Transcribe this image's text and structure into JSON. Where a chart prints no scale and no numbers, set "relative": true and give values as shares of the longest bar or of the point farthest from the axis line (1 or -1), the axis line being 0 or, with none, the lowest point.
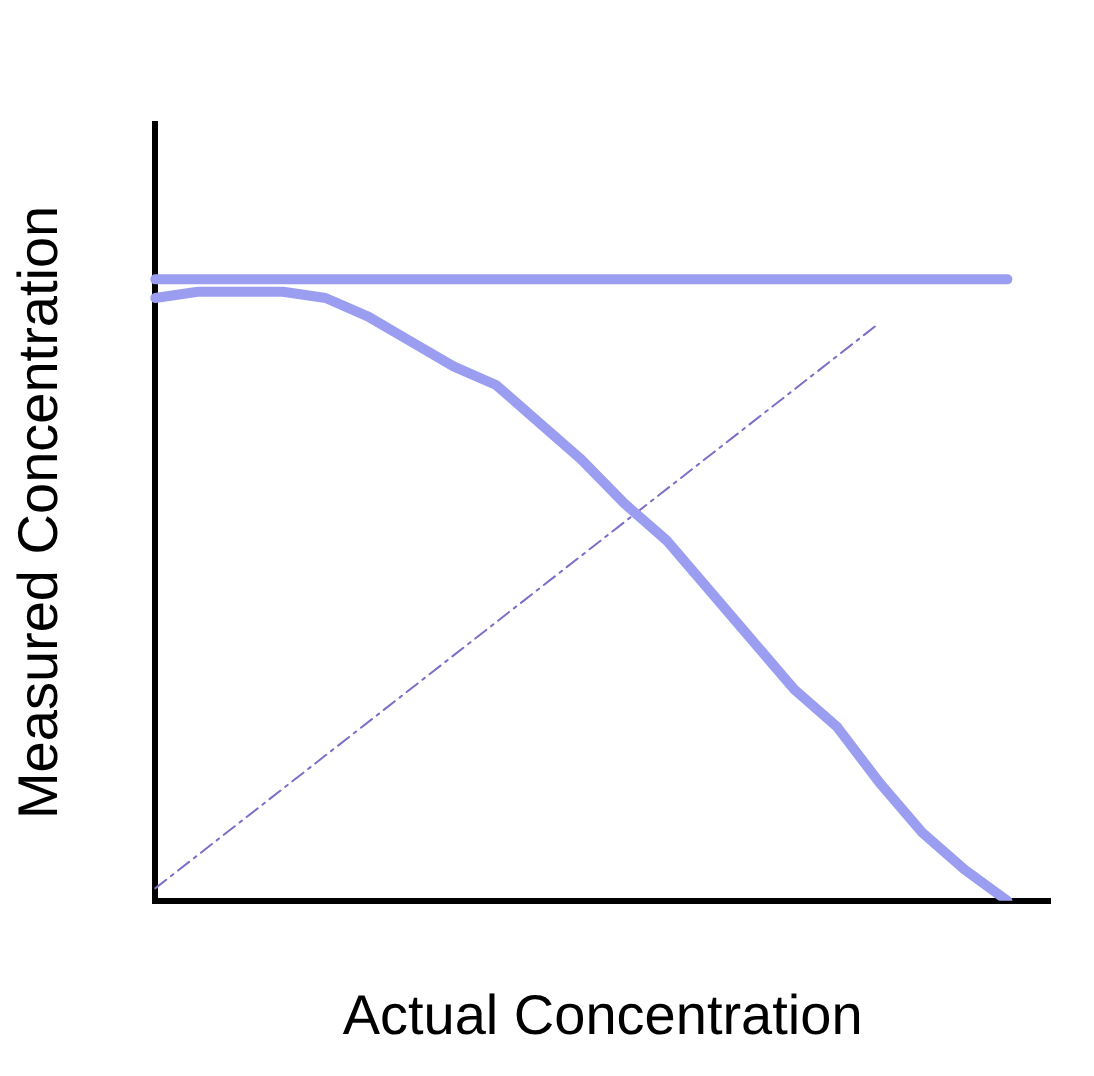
{
  "chart_data": {
    "type": "line",
    "relative": true,
    "xlabel": "Actual Concentration",
    "ylabel": "Measured Concentration",
    "categories": [
      null,
      null,
      null,
      null,
      null,
      null,
      null,
      null,
      null,
      null,
      null,
      null,
      null,
      null,
      null,
      null,
      null,
      null,
      null,
      null,
      null,
      null
    ],
    "series": [
      {
        "color": "#9b9ef0",
        "line_style": "solid",
        "values": [
          1,
          1,
          1,
          1,
          1,
          1,
          1,
          1,
          1,
          1,
          1,
          1,
          1,
          1,
          1,
          1,
          1,
          1,
          1,
          1,
          1,
          null
        ]
      },
      {
        "color": "#9b9ef0",
        "line_style": "solid",
        "values": [
          0.97,
          0.98,
          0.98,
          0.98,
          0.97,
          0.94,
          0.9,
          0.86,
          0.83,
          0.77,
          0.71,
          0.64,
          0.58,
          0.5,
          0.42,
          0.34,
          0.28,
          0.19,
          0.11,
          0.05,
          0,
          null
        ]
      },
      {
        "color": "#7a6fc8",
        "line_style": "dashed",
        "values": [
          0.02,
          null,
          null,
          null,
          null,
          null,
          null,
          null,
          null,
          null,
          null,
          null,
          null,
          null,
          null,
          null,
          null,
          0.93,
          null,
          null,
          null,
          null
        ]
      }
    ],
    "grid": false,
    "legend": false,
    "marker": "none"
  }
}
